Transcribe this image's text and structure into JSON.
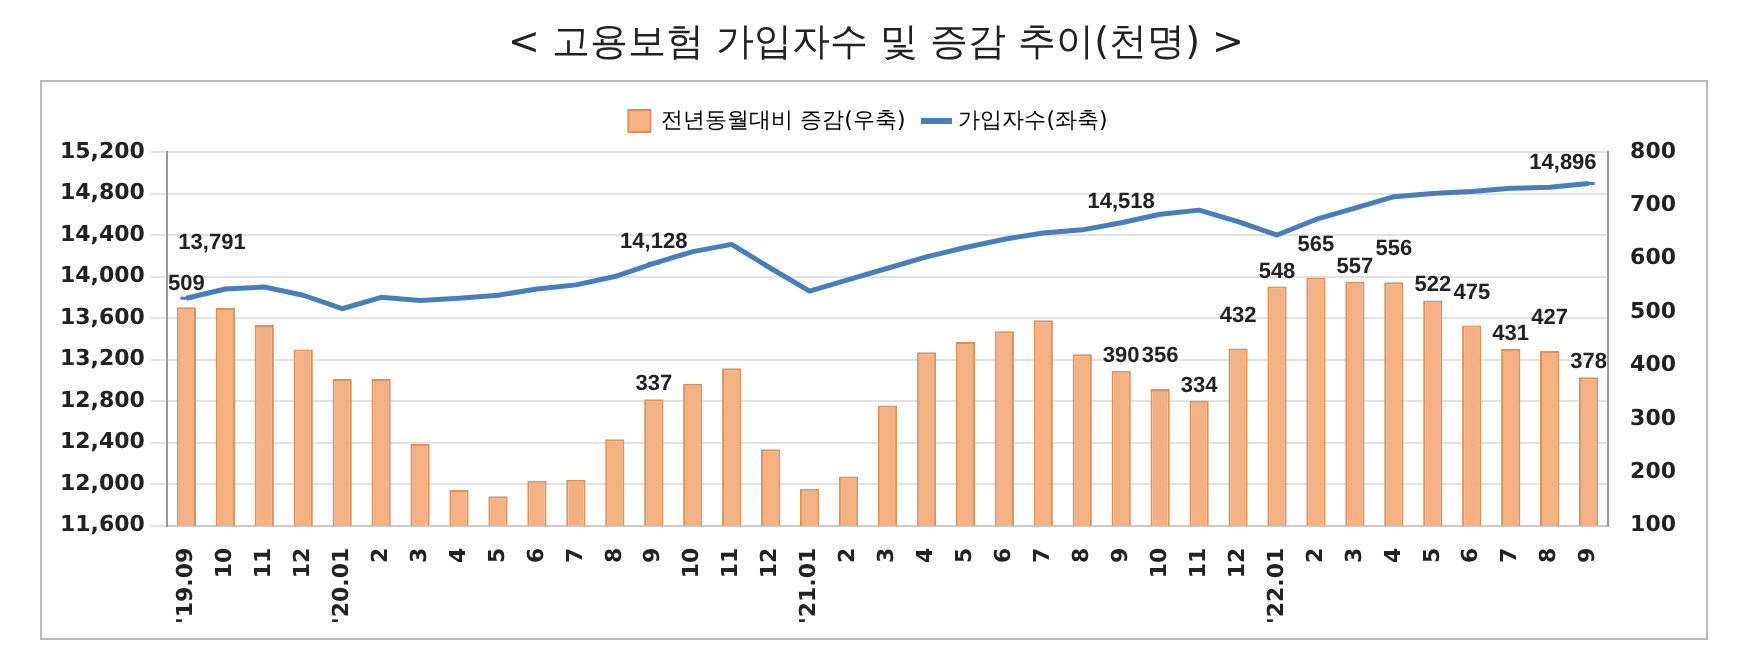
{
  "chart_data": {
    "type": "bar",
    "title": "< 고용보험 가입자수 및 증감 추이(천명) >",
    "categories": [
      "'19.09",
      "10",
      "11",
      "12",
      "'20.01",
      "2",
      "3",
      "4",
      "5",
      "6",
      "7",
      "8",
      "9",
      "10",
      "11",
      "12",
      "'21.01",
      "2",
      "3",
      "4",
      "5",
      "6",
      "7",
      "8",
      "9",
      "10",
      "11",
      "12",
      "'22.01",
      "2",
      "3",
      "4",
      "5",
      "6",
      "7",
      "8",
      "9"
    ],
    "series": [
      {
        "name": "전년동월대비 증감(우축)",
        "axis": "y2",
        "color": "#f4b183",
        "values": [
          509,
          508,
          476,
          430,
          375,
          375,
          253,
          167,
          155,
          184,
          186,
          262,
          337,
          366,
          395,
          243,
          169,
          192,
          325,
          425,
          444,
          464,
          485,
          421,
          390,
          356,
          334,
          432,
          548,
          565,
          557,
          556,
          522,
          475,
          431,
          427,
          378
        ],
        "value_labels": [
          "509",
          null,
          null,
          null,
          null,
          null,
          null,
          null,
          null,
          null,
          null,
          null,
          "337",
          null,
          null,
          null,
          null,
          null,
          null,
          null,
          null,
          null,
          null,
          null,
          "390",
          "356",
          "334",
          "432",
          "548",
          "565",
          "557",
          "556",
          "522",
          "475",
          "431",
          "427",
          "378"
        ]
      },
      {
        "name": "가입자수(좌축)",
        "type": "line",
        "axis": "y",
        "color": "#4a7ebb",
        "values": [
          13791,
          13880,
          13900,
          13820,
          13690,
          13800,
          13770,
          13790,
          13820,
          13880,
          13920,
          14000,
          14128,
          14240,
          14310,
          14080,
          13860,
          13970,
          14080,
          14190,
          14280,
          14360,
          14420,
          14450,
          14518,
          14600,
          14640,
          14530,
          14400,
          14550,
          14660,
          14770,
          14800,
          14820,
          14850,
          14860,
          14896
        ],
        "value_labels": [
          "13,791",
          null,
          null,
          null,
          null,
          null,
          null,
          null,
          null,
          null,
          null,
          null,
          "14,128",
          null,
          null,
          null,
          null,
          null,
          null,
          null,
          null,
          null,
          null,
          null,
          "14,518",
          null,
          null,
          null,
          null,
          null,
          null,
          null,
          null,
          null,
          null,
          null,
          "14,896"
        ]
      }
    ],
    "ylim": [
      11600,
      15200
    ],
    "yticks": [
      {
        "value": 11600,
        "label": "11,600"
      },
      {
        "value": 12000,
        "label": "12,000"
      },
      {
        "value": 12400,
        "label": "12,400"
      },
      {
        "value": 12800,
        "label": "12,800"
      },
      {
        "value": 13200,
        "label": "13,200"
      },
      {
        "value": 13600,
        "label": "13,600"
      },
      {
        "value": 14000,
        "label": "14,000"
      },
      {
        "value": 14400,
        "label": "14,400"
      },
      {
        "value": 14800,
        "label": "14,800"
      },
      {
        "value": 15200,
        "label": "15,200"
      }
    ],
    "y2lim": [
      100,
      800
    ],
    "y2ticks": [
      100,
      200,
      300,
      400,
      500,
      600,
      700,
      800
    ],
    "grid": "y",
    "legend": "top"
  }
}
